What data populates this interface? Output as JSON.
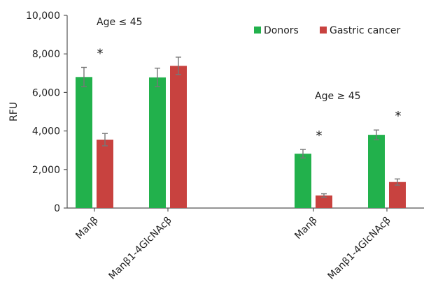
{
  "chart_data": {
    "type": "bar",
    "ylabel": "RFU",
    "ylim": [
      0,
      10000
    ],
    "yticks": [
      0,
      2000,
      4000,
      6000,
      8000,
      10000
    ],
    "ytick_labels": [
      "0",
      "2,000",
      "4,000",
      "6,000",
      "8,000",
      "10,000"
    ],
    "grid": false,
    "legend_position": "top-right",
    "series": [
      {
        "name": "Donors",
        "color": "#22b14c"
      },
      {
        "name": "Gastric cancer",
        "color": "#c8423f"
      }
    ],
    "groups": [
      {
        "label": "Age ≤ 45",
        "categories": [
          {
            "label": "Manβ",
            "values": [
              6800,
              3550
            ],
            "errors": [
              500,
              320
            ],
            "significance": "*"
          },
          {
            "label": "Manβ1-4GlcNAcβ",
            "values": [
              6780,
              7380
            ],
            "errors": [
              480,
              450
            ],
            "significance": ""
          }
        ]
      },
      {
        "label": "Age ≥ 45",
        "categories": [
          {
            "label": "Manβ",
            "values": [
              2820,
              650
            ],
            "errors": [
              220,
              90
            ],
            "significance": "*"
          },
          {
            "label": "Manβ1-4GlcNAcβ",
            "values": [
              3800,
              1350
            ],
            "errors": [
              250,
              160
            ],
            "significance": "*"
          }
        ]
      }
    ]
  }
}
